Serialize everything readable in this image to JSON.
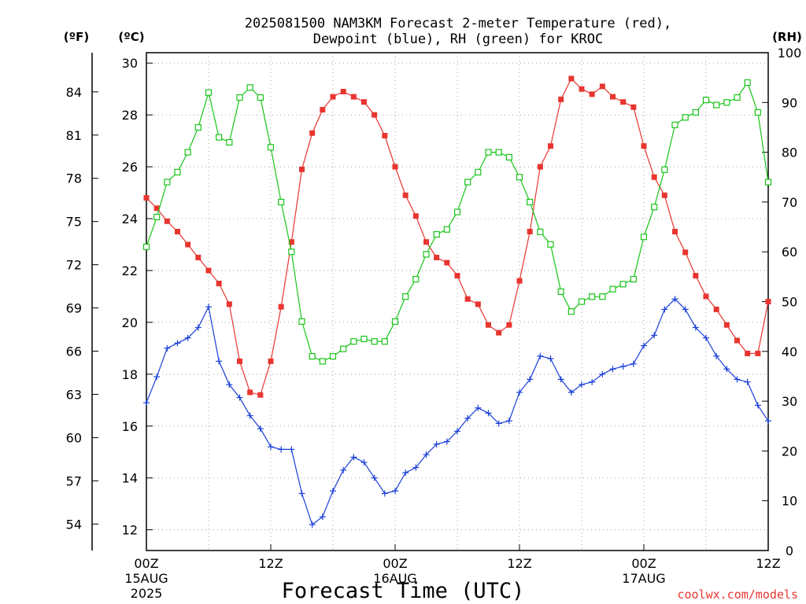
{
  "title_line1": "2025081500 NAM3KM Forecast 2-meter Temperature (red),",
  "title_line2": "Dewpoint (blue), RH (green) for KROC",
  "units": {
    "fahrenheit": "(ºF)",
    "celsius": "(ºC)",
    "rh": "(RH)"
  },
  "x_axis_title": "Forecast Time (UTC)",
  "credit": "coolwx.com/models",
  "x_ticks": [
    {
      "label": "00Z",
      "sub1": "15AUG",
      "sub2": "2025"
    },
    {
      "label": "12Z",
      "sub1": "",
      "sub2": ""
    },
    {
      "label": "00Z",
      "sub1": "16AUG",
      "sub2": ""
    },
    {
      "label": "12Z",
      "sub1": "",
      "sub2": ""
    },
    {
      "label": "00Z",
      "sub1": "17AUG",
      "sub2": ""
    },
    {
      "label": "12Z",
      "sub1": "",
      "sub2": ""
    }
  ],
  "celsius_ticks": [
    "12",
    "14",
    "16",
    "18",
    "20",
    "22",
    "24",
    "26",
    "28",
    "30"
  ],
  "fahrenheit_ticks": [
    "54",
    "57",
    "60",
    "63",
    "66",
    "69",
    "72",
    "75",
    "78",
    "81",
    "84"
  ],
  "rh_ticks": [
    "0",
    "10",
    "20",
    "30",
    "40",
    "50",
    "60",
    "70",
    "80",
    "90",
    "100"
  ],
  "colors": {
    "temperature": "#e8352f",
    "dewpoint": "#1a3fd8",
    "rh": "#19c419",
    "grid": "#a0a0a0"
  },
  "chart_data": {
    "type": "line",
    "x": [
      0,
      1,
      2,
      3,
      4,
      5,
      6,
      7,
      8,
      9,
      10,
      11,
      12,
      13,
      14,
      15,
      16,
      17,
      18,
      19,
      20,
      21,
      22,
      23,
      24,
      25,
      26,
      27,
      28,
      29,
      30,
      31,
      32,
      33,
      34,
      35,
      36,
      37,
      38,
      39,
      40,
      41,
      42,
      43,
      44,
      45,
      46,
      47,
      48,
      49,
      50,
      51,
      52,
      53,
      54,
      55,
      56,
      57,
      58,
      59,
      60
    ],
    "xlabel": "Forecast Time (UTC)",
    "xlim": [
      0,
      60
    ],
    "y_left_label": "(ºC)",
    "ylim_celsius": [
      11.2,
      30.4
    ],
    "ylim_rh": [
      0,
      100
    ],
    "series": [
      {
        "name": "2-meter Temperature (red)",
        "axis": "celsius",
        "marker": "filled-square",
        "values": [
          24.8,
          24.4,
          23.9,
          23.5,
          23.0,
          22.5,
          22.0,
          21.5,
          20.7,
          18.5,
          17.3,
          17.2,
          18.5,
          20.6,
          23.1,
          25.9,
          27.3,
          28.2,
          28.7,
          28.9,
          28.7,
          28.5,
          28.0,
          27.2,
          26.0,
          24.9,
          24.1,
          23.1,
          22.5,
          22.3,
          21.8,
          20.9,
          20.7,
          19.9,
          19.6,
          19.9,
          21.6,
          23.5,
          26.0,
          26.8,
          28.6,
          29.4,
          29.0,
          28.8,
          29.1,
          28.7,
          28.5,
          28.3,
          26.8,
          25.6,
          24.9,
          23.5,
          22.7,
          21.8,
          21.0,
          20.5,
          19.9,
          19.3,
          18.8,
          18.8,
          20.8
        ]
      },
      {
        "name": "Dewpoint (blue)",
        "axis": "celsius",
        "marker": "plus",
        "values": [
          16.9,
          17.9,
          19.0,
          19.2,
          19.4,
          19.8,
          20.6,
          18.5,
          17.6,
          17.1,
          16.4,
          15.9,
          15.2,
          15.1,
          15.1,
          13.4,
          12.2,
          12.5,
          13.5,
          14.3,
          14.8,
          14.6,
          14.0,
          13.4,
          13.5,
          14.2,
          14.4,
          14.9,
          15.3,
          15.4,
          15.8,
          16.3,
          16.7,
          16.5,
          16.1,
          16.2,
          17.3,
          17.8,
          18.7,
          18.6,
          17.8,
          17.3,
          17.6,
          17.7,
          18.0,
          18.2,
          18.3,
          18.4,
          19.1,
          19.5,
          20.5,
          20.9,
          20.5,
          19.8,
          19.4,
          18.7,
          18.2,
          17.8,
          17.7,
          16.8,
          16.2
        ]
      },
      {
        "name": "RH (green)",
        "axis": "rh",
        "marker": "open-square",
        "values": [
          61.0,
          67.0,
          74.0,
          76.0,
          80.0,
          85.0,
          92.0,
          83.0,
          82.0,
          91.0,
          93.0,
          91.0,
          81.0,
          70.0,
          60.0,
          46.0,
          39.0,
          38.0,
          39.0,
          40.5,
          42.0,
          42.5,
          42.0,
          42.0,
          46.0,
          51.0,
          54.5,
          59.5,
          63.5,
          64.5,
          68.0,
          74.0,
          76.0,
          80.0,
          80.0,
          79.0,
          75.0,
          70.0,
          64.0,
          61.5,
          52.0,
          48.0,
          50.0,
          51.0,
          51.0,
          52.5,
          53.5,
          54.5,
          63.0,
          69.0,
          76.5,
          85.5,
          87.0,
          88.0,
          90.5,
          89.5,
          90.0,
          91.0,
          94.0,
          88.0,
          74.0
        ]
      }
    ],
    "grid": true,
    "legend": "none (series identified in title)"
  }
}
